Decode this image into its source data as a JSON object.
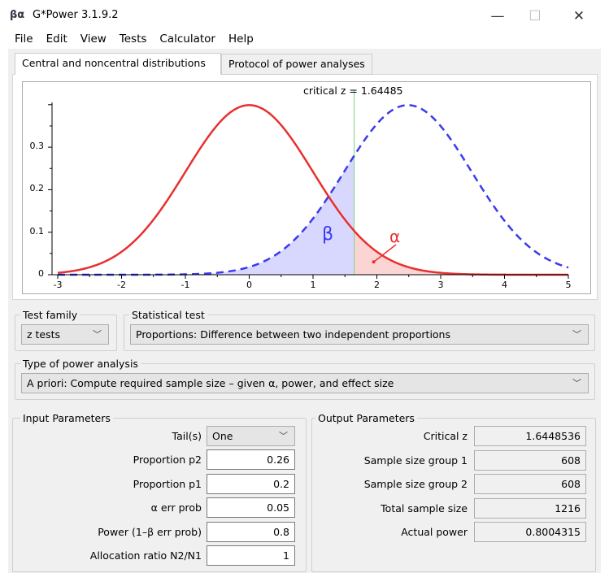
{
  "window": {
    "title": "G*Power 3.1.9.2",
    "icon_text": "βα",
    "minimize": "—",
    "maximize": "☐",
    "close": "✕"
  },
  "menu": [
    "File",
    "Edit",
    "View",
    "Tests",
    "Calculator",
    "Help"
  ],
  "tabs": [
    {
      "label": "Central and noncentral distributions",
      "active": true
    },
    {
      "label": "Protocol of power analyses",
      "active": false
    }
  ],
  "chart_data": {
    "type": "line",
    "annotation": "critical z = 1.64485",
    "critical_z": 1.64485,
    "xlim": [
      -3,
      5
    ],
    "ylim": [
      0,
      0.4
    ],
    "x_ticks": [
      "-3",
      "-2",
      "-1",
      "0",
      "1",
      "2",
      "3",
      "4",
      "5"
    ],
    "y_ticks": [
      "0",
      "0.1",
      "0.2",
      "0.3"
    ],
    "series": [
      {
        "distribution": "central normal",
        "mean": 0,
        "sd": 1,
        "color": "#e8302f",
        "style": "solid"
      },
      {
        "distribution": "noncentral normal",
        "mean": 2.486,
        "sd": 1,
        "color": "#3a3af0",
        "style": "dashed"
      }
    ],
    "regions": [
      {
        "label": "β",
        "color": "#3a3af0",
        "fill": "#d8d8ff"
      },
      {
        "label": "α",
        "color": "#e8302f",
        "fill": "#fbd4d4"
      }
    ],
    "critical_line_color": "#7fd17f"
  },
  "test_family": {
    "label": "Test family",
    "value": "z tests"
  },
  "statistical_test": {
    "label": "Statistical test",
    "value": "Proportions: Difference between two independent proportions"
  },
  "power_analysis": {
    "label": "Type of power analysis",
    "value": "A priori: Compute required sample size – given α, power, and effect size"
  },
  "input": {
    "label": "Input Parameters",
    "tails": {
      "label": "Tail(s)",
      "value": "One"
    },
    "fields": [
      {
        "label": "Proportion p2",
        "value": "0.26"
      },
      {
        "label": "Proportion p1",
        "value": "0.2"
      },
      {
        "label": "α err prob",
        "value": "0.05"
      },
      {
        "label": "Power (1–β err prob)",
        "value": "0.8"
      },
      {
        "label": "Allocation ratio N2/N1",
        "value": "1"
      }
    ]
  },
  "output": {
    "label": "Output Parameters",
    "fields": [
      {
        "label": "Critical z",
        "value": "1.6448536"
      },
      {
        "label": "Sample size group 1",
        "value": "608"
      },
      {
        "label": "Sample size group 2",
        "value": "608"
      },
      {
        "label": "Total sample size",
        "value": "1216"
      },
      {
        "label": "Actual power",
        "value": "0.8004315"
      }
    ]
  }
}
